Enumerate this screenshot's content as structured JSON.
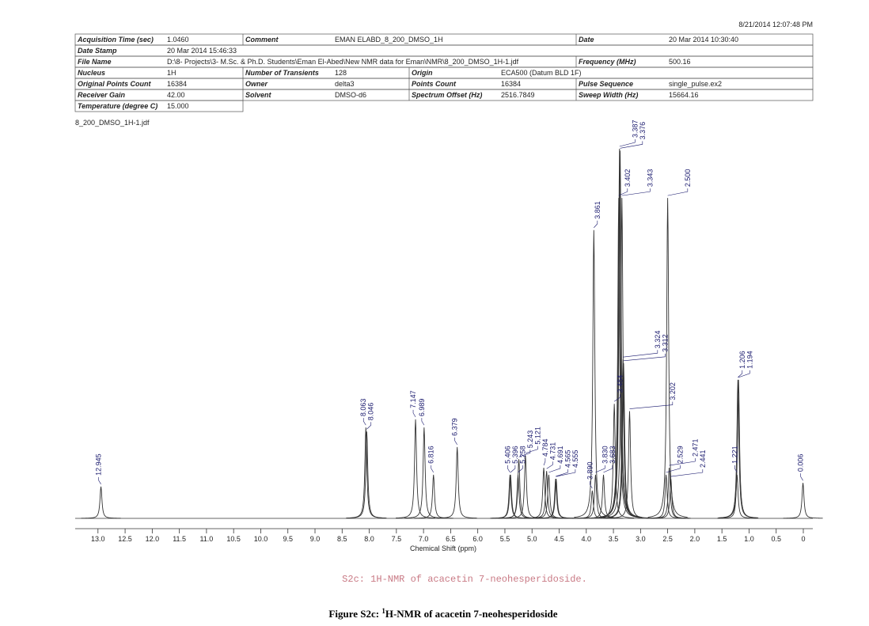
{
  "timestamp": "8/21/2014 12:07:48 PM",
  "metadata": [
    [
      [
        "Acquisition Time (sec)",
        "1.0460"
      ],
      [
        "Comment",
        "EMAN ELABD_8_200_DMSO_1H"
      ],
      [
        "Date",
        "20 Mar 2014 10:30:40"
      ]
    ],
    [
      [
        "Date Stamp",
        "20 Mar 2014 15:46:33"
      ]
    ],
    [
      [
        "File Name",
        "D:\\8- Projects\\3- M.Sc. & Ph.D. Students\\Eman El-Abed\\New NMR data for Eman\\NMR\\8_200_DMSO_1H-1.jdf"
      ],
      [
        "Frequency (MHz)",
        "500.16"
      ]
    ],
    [
      [
        "Nucleus",
        "1H"
      ],
      [
        "Number of Transients",
        "128"
      ],
      [
        "Origin",
        "ECA500 (Datum BLD 1F)"
      ]
    ],
    [
      [
        "Original Points Count",
        "16384"
      ],
      [
        "Owner",
        "delta3"
      ],
      [
        "Points Count",
        "16384"
      ],
      [
        "Pulse Sequence",
        "single_pulse.ex2"
      ]
    ],
    [
      [
        "Receiver Gain",
        "42.00"
      ],
      [
        "Solvent",
        "DMSO-d6"
      ],
      [
        "Spectrum Offset (Hz)",
        "2516.7849"
      ],
      [
        "Sweep Width (Hz)",
        "15664.16"
      ]
    ],
    [
      [
        "Temperature (degree C)",
        "15.000"
      ]
    ]
  ],
  "file_label": "8_200_DMSO_1H-1.jdf",
  "chart_data": {
    "type": "nmr",
    "x_label": "Chemical Shift (ppm)",
    "xlim": [
      13.42,
      -0.175
    ],
    "ylim": [
      0,
      100
    ],
    "xticks": [
      {
        "value": 13,
        "label": "13.0"
      },
      12.5,
      {
        "value": 12,
        "label": "12.0"
      },
      11.5,
      {
        "value": 11,
        "label": "11.0"
      },
      10.5,
      {
        "value": 10,
        "label": "10.0"
      },
      9.5,
      {
        "value": 9,
        "label": "9.0"
      },
      8.5,
      {
        "value": 8,
        "label": "8.0"
      },
      7.5,
      {
        "value": 7,
        "label": "7.0"
      },
      6.5,
      {
        "value": 6,
        "label": "6.0"
      },
      5.5,
      {
        "value": 5,
        "label": "5.0"
      },
      4.5,
      {
        "value": 4,
        "label": "4.0"
      },
      3.5,
      {
        "value": 3,
        "label": "3.0"
      },
      2.5,
      {
        "value": 2,
        "label": "2.0"
      },
      1.5,
      {
        "value": 1,
        "label": "1.0"
      },
      0.5,
      0
    ],
    "color": "#333333",
    "peaks": {
      "shifts": [
        12.945,
        8.063,
        8.046,
        7.147,
        6.989,
        6.816,
        6.379,
        5.406,
        5.396,
        5.258,
        5.243,
        5.121,
        4.784,
        4.731,
        4.691,
        4.565,
        4.555,
        3.89,
        3.861,
        3.83,
        3.683,
        3.484,
        3.402,
        3.387,
        3.376,
        3.343,
        3.324,
        3.312,
        3.202,
        2.529,
        2.5,
        2.471,
        2.441,
        1.221,
        1.206,
        1.194,
        0.006
      ],
      "value_labels": [
        "12.945",
        "8.063",
        "8.046",
        "7.147",
        "6.989",
        "6.816",
        "6.379",
        "5.406",
        "5.396",
        "5.258",
        "5.243",
        "5.121",
        "4.784",
        "4.731",
        "4.691",
        "4.565",
        "4.555",
        "3.890",
        "3.861",
        "3.830",
        "3.683",
        "3.484",
        "3.402",
        "3.387",
        "3.376",
        "3.343",
        "3.324",
        "3.312",
        "3.202",
        "2.529",
        "2.500",
        "2.471",
        "2.441",
        "1.221",
        "1.206",
        "1.194",
        "0.006"
      ],
      "heights": [
        8.6,
        24.6,
        23.5,
        26.8,
        24.6,
        11.8,
        19.3,
        11.8,
        11.8,
        11.8,
        16,
        17,
        13.7,
        12.8,
        11.8,
        10.7,
        10.7,
        7.5,
        78,
        11.8,
        11.8,
        31,
        86.7,
        100,
        99.5,
        86.7,
        43,
        42,
        29,
        11.8,
        86.7,
        13.7,
        10.7,
        11.8,
        37.5,
        37.5,
        9.6
      ]
    }
  },
  "caption_mono": "S2c: 1H-NMR of acacetin 7-neohesperidoside.",
  "figure_caption": {
    "prefix": "Figure S2c: ",
    "superscript": "1",
    "text": "H-NMR of acacetin 7-neohesperidoside"
  }
}
